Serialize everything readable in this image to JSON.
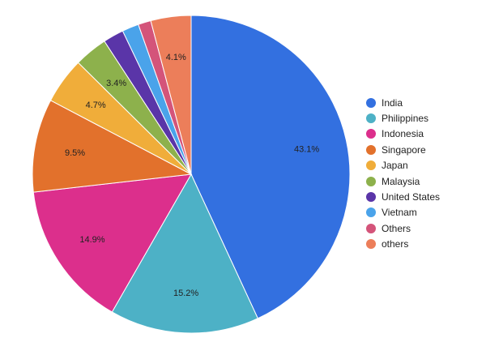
{
  "chart_data": {
    "type": "pie",
    "title": "",
    "slices": [
      {
        "label": "India",
        "value": 43.1,
        "display": "43.1%",
        "color": "#3370e0"
      },
      {
        "label": "Philippines",
        "value": 15.2,
        "display": "15.2%",
        "color": "#4db1c6"
      },
      {
        "label": "Indonesia",
        "value": 14.9,
        "display": "14.9%",
        "color": "#dc2f8c"
      },
      {
        "label": "Singapore",
        "value": 9.5,
        "display": "9.5%",
        "color": "#e2712c"
      },
      {
        "label": "Japan",
        "value": 4.7,
        "display": "4.7%",
        "color": "#f0ad3a"
      },
      {
        "label": "Malaysia",
        "value": 3.4,
        "display": "3.4%",
        "color": "#8db14c"
      },
      {
        "label": "United States",
        "value": 2.1,
        "display": "",
        "color": "#5a35a8"
      },
      {
        "label": "Vietnam",
        "value": 1.7,
        "display": "",
        "color": "#4aa3ea"
      },
      {
        "label": "Others",
        "value": 1.3,
        "display": "",
        "color": "#d4547a"
      },
      {
        "label": "others",
        "value": 4.1,
        "display": "4.1%",
        "color": "#ec7e5a"
      }
    ],
    "start_angle_deg": 0,
    "direction": "clockwise",
    "legend_position": "right"
  }
}
